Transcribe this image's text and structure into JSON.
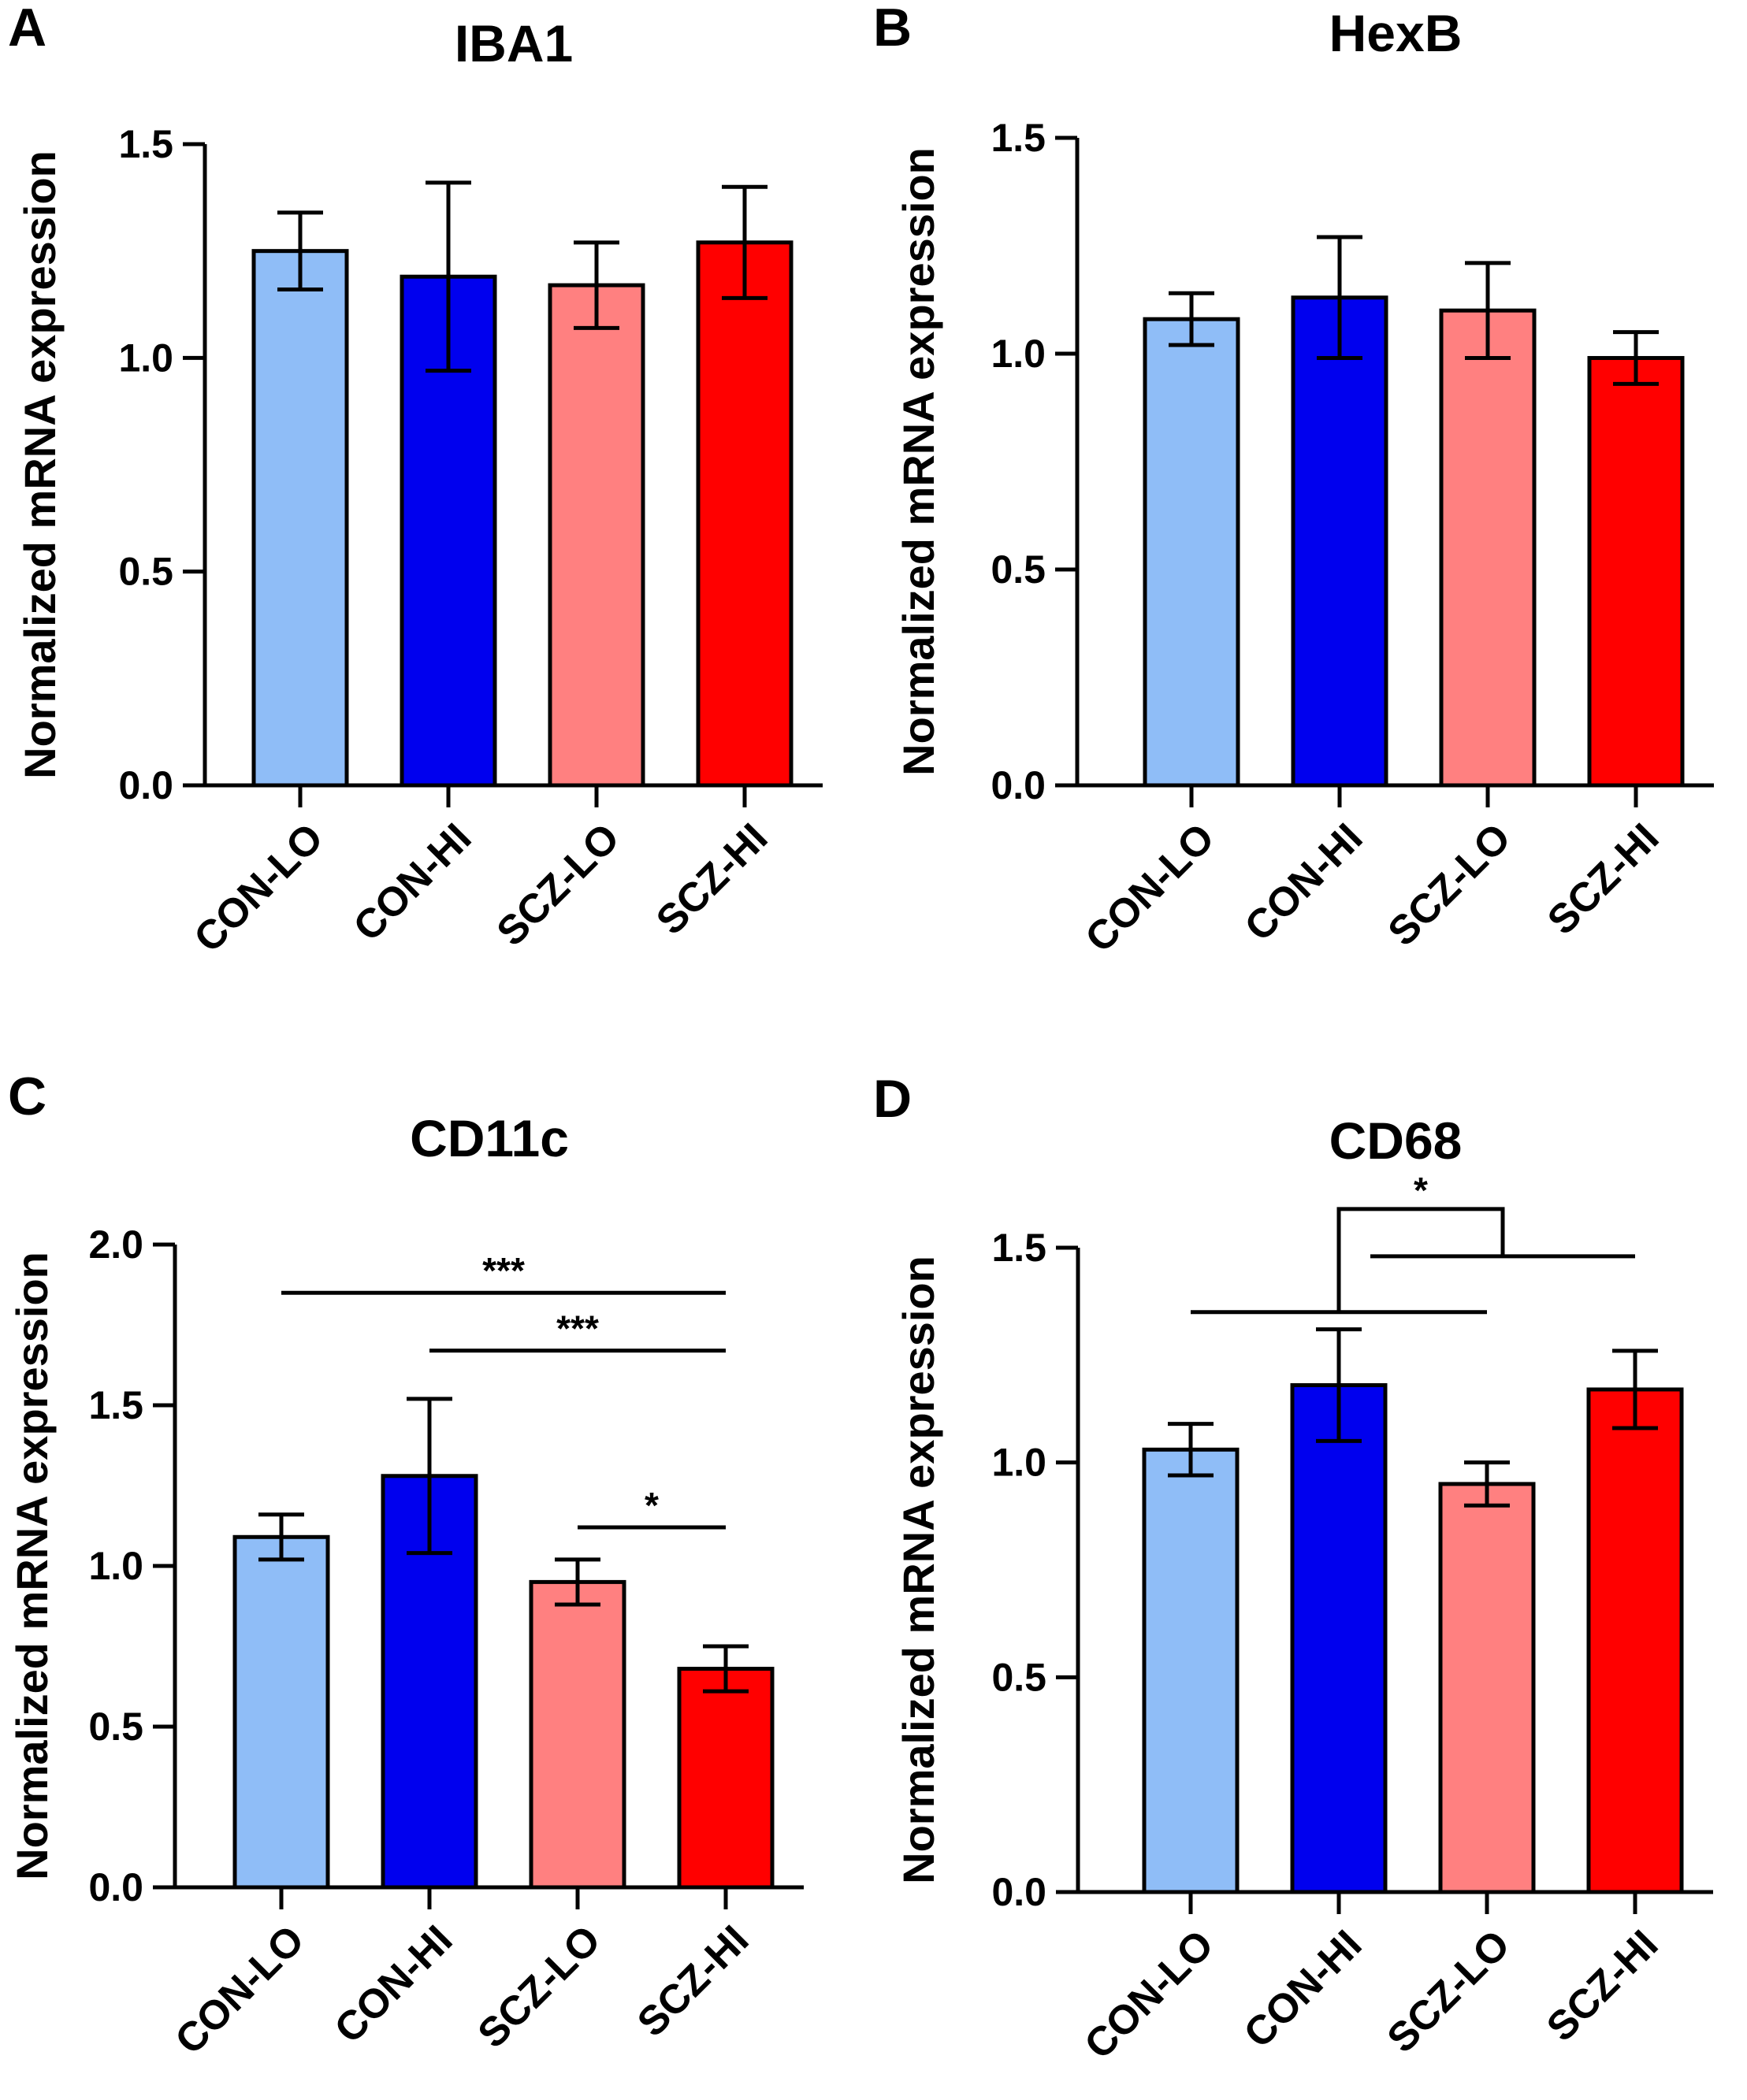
{
  "chart_data": [
    {
      "type": "bar",
      "panel_letter": "A",
      "title": "IBA1",
      "xlabel": "",
      "ylabel": "Normalized mRNA expression",
      "ylim": [
        0,
        1.5
      ],
      "yticks": [
        "0.0",
        "0.5",
        "1.0",
        "1.5"
      ],
      "categories": [
        "CON-LO",
        "CON-HI",
        "SCZ-LO",
        "SCZ-HI"
      ],
      "values": [
        1.25,
        1.19,
        1.17,
        1.27
      ],
      "errors": [
        0.09,
        0.22,
        0.1,
        0.13
      ],
      "colors": [
        "#8fbdf7",
        "#0000ee",
        "#ff8080",
        "#ff0000"
      ],
      "significance": []
    },
    {
      "type": "bar",
      "panel_letter": "B",
      "title": "HexB",
      "xlabel": "",
      "ylabel": "Normalized mRNA expression",
      "ylim": [
        0,
        1.5
      ],
      "yticks": [
        "0.0",
        "0.5",
        "1.0",
        "1.5"
      ],
      "categories": [
        "CON-LO",
        "CON-HI",
        "SCZ-LO",
        "SCZ-HI"
      ],
      "values": [
        1.08,
        1.13,
        1.1,
        0.99
      ],
      "errors": [
        0.06,
        0.14,
        0.11,
        0.06
      ],
      "colors": [
        "#8fbdf7",
        "#0000ee",
        "#ff8080",
        "#ff0000"
      ],
      "significance": []
    },
    {
      "type": "bar",
      "panel_letter": "C",
      "title": "CD11c",
      "xlabel": "",
      "ylabel": "Normalized mRNA expression",
      "ylim": [
        0,
        2.0
      ],
      "yticks": [
        "0.0",
        "0.5",
        "1.0",
        "1.5",
        "2.0"
      ],
      "categories": [
        "CON-LO",
        "CON-HI",
        "SCZ-LO",
        "SCZ-HI"
      ],
      "values": [
        1.09,
        1.28,
        0.95,
        0.68
      ],
      "errors": [
        0.07,
        0.24,
        0.07,
        0.07
      ],
      "colors": [
        "#8fbdf7",
        "#0000ee",
        "#ff8080",
        "#ff0000"
      ],
      "significance": [
        {
          "from": 0,
          "to": 3,
          "label": "***",
          "y": 1.85
        },
        {
          "from": 1,
          "to": 3,
          "label": "***",
          "y": 1.67
        },
        {
          "from": 2,
          "to": 3,
          "label": "*",
          "y": 1.12
        }
      ]
    },
    {
      "type": "bar",
      "panel_letter": "D",
      "title": "CD68",
      "xlabel": "",
      "ylabel": "Normalized mRNA expression",
      "ylim": [
        0,
        1.5
      ],
      "yticks": [
        "0.0",
        "0.5",
        "1.0",
        "1.5"
      ],
      "categories": [
        "CON-LO",
        "CON-HI",
        "SCZ-LO",
        "SCZ-HI"
      ],
      "values": [
        1.03,
        1.18,
        0.95,
        1.17
      ],
      "errors": [
        0.06,
        0.13,
        0.05,
        0.09
      ],
      "colors": [
        "#8fbdf7",
        "#0000ee",
        "#ff8080",
        "#ff0000"
      ],
      "significance": [
        {
          "groups": [
            [
              0,
              2
            ],
            [
              1,
              3
            ]
          ],
          "label": "*",
          "lower_y": 1.35,
          "upper_y": 1.48,
          "top_y": 1.59
        }
      ]
    }
  ]
}
